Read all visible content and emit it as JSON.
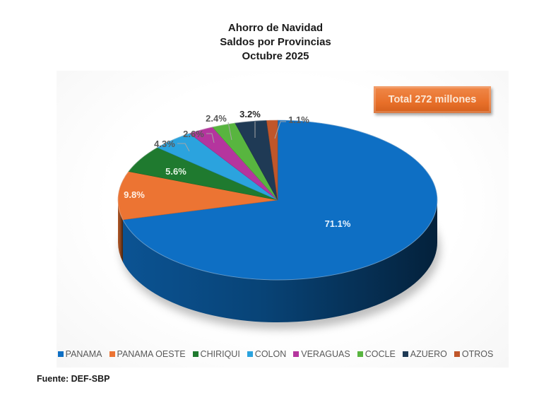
{
  "title": {
    "line1": "Ahorro de Navidad",
    "line2": "Saldos por Provincias",
    "line3": "Octubre 2025"
  },
  "total_badge": "Total 272 millones",
  "source": "Fuente: DEF-SBP",
  "chart_data": {
    "type": "pie",
    "title": "Ahorro de Navidad - Saldos por Provincias - Octubre 2025",
    "style": "3d-exploded-none",
    "annotation": "Total 272 millones",
    "legend_position": "bottom",
    "categories": [
      "PANAMA",
      "PANAMA OESTE",
      "CHIRIQUI",
      "COLON",
      "VERAGUAS",
      "COCLE",
      "AZUERO",
      "OTROS"
    ],
    "values": [
      71.1,
      9.8,
      5.6,
      4.3,
      2.6,
      2.4,
      3.2,
      1.1
    ],
    "labels": [
      "71.1%",
      "9.8%",
      "5.6%",
      "4.3%",
      "2.6%",
      "2.4%",
      "3.2%",
      "1.1%"
    ],
    "colors": [
      "#0e6fc4",
      "#ec7433",
      "#1f7a2f",
      "#2ba3de",
      "#b5359e",
      "#58b53f",
      "#1f3a55",
      "#c0562a"
    ],
    "unit": "%"
  },
  "legend": [
    {
      "label": "PANAMA",
      "color": "#0e6fc4"
    },
    {
      "label": "PANAMA OESTE",
      "color": "#ec7433"
    },
    {
      "label": "CHIRIQUI",
      "color": "#1f7a2f"
    },
    {
      "label": "COLON",
      "color": "#2ba3de"
    },
    {
      "label": "VERAGUAS",
      "color": "#b5359e"
    },
    {
      "label": "COCLE",
      "color": "#58b53f"
    },
    {
      "label": "AZUERO",
      "color": "#1f3a55"
    },
    {
      "label": "OTROS",
      "color": "#c0562a"
    }
  ]
}
